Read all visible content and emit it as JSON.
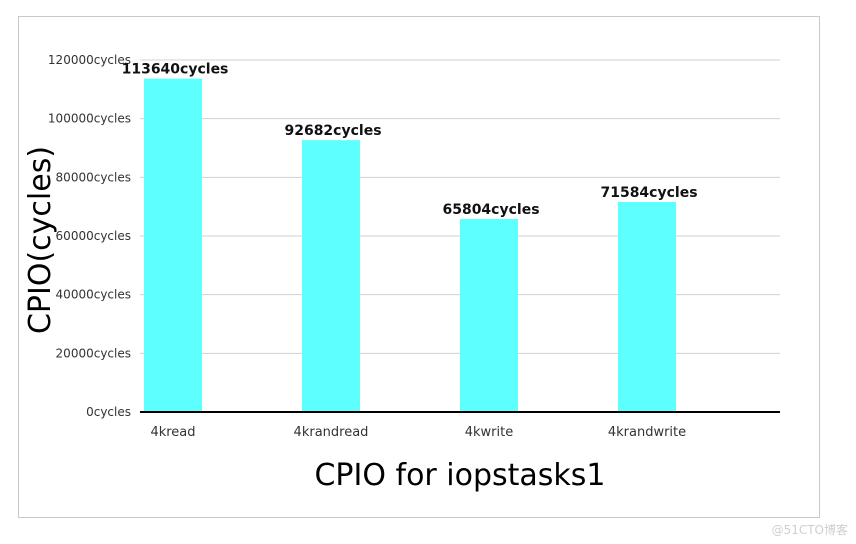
{
  "chart_data": {
    "type": "bar",
    "title": "",
    "xlabel": "CPIO for iopstasks1",
    "ylabel": "CPIO(cycles)",
    "categories": [
      "4kread",
      "4krandread",
      "4kwrite",
      "4krandwrite"
    ],
    "values": [
      113640,
      92682,
      65804,
      71584
    ],
    "data_labels": [
      "113640cycles",
      "92682cycles",
      "65804cycles",
      "71584cycles"
    ],
    "ylim": [
      0,
      120000
    ],
    "yticks": [
      0,
      20000,
      40000,
      60000,
      80000,
      100000,
      120000
    ],
    "ytick_labels": [
      "0cycles",
      "20000cycles",
      "40000cycles",
      "60000cycles",
      "80000cycles",
      "100000cycles",
      "120000cycles"
    ],
    "grid": true,
    "legend": "none",
    "bar_color": "#5effff",
    "grid_color": "#d0d0d0",
    "axis_color": "#000000"
  },
  "watermark": "@51CTO博客"
}
